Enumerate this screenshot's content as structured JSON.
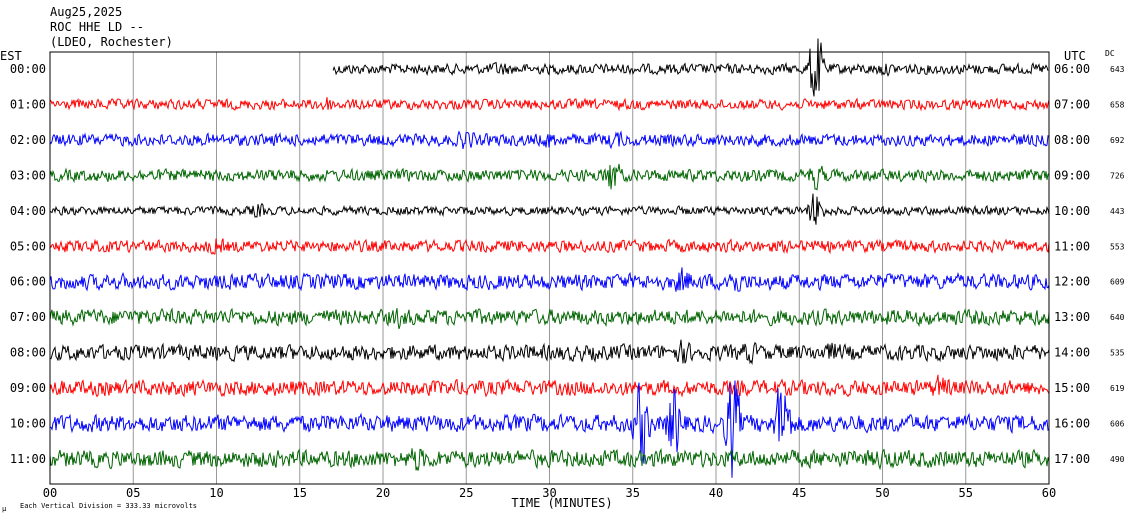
{
  "header": {
    "date": "Aug25,2025",
    "station": "ROC HHE LD --",
    "network": "(LDEO, Rochester)"
  },
  "axes": {
    "left_zone": "EST",
    "right_zone": "UTC",
    "dc_header": "DC",
    "xlabel": "TIME (MINUTES)",
    "footer_note": "Each Vertical Division =  333.33 microvolts",
    "footer_mark": "μ"
  },
  "colors": {
    "cycle": [
      "#000000",
      "#ff0000",
      "#0000ff",
      "#006400"
    ],
    "grid": "#999999",
    "frame": "#000000"
  },
  "chart_data": {
    "type": "line",
    "title": "ROC HHE LD --",
    "xlabel": "TIME (MINUTES)",
    "xlim": [
      0,
      60
    ],
    "x_ticks": [
      "00",
      "05",
      "10",
      "15",
      "20",
      "25",
      "30",
      "35",
      "40",
      "45",
      "50",
      "55",
      "60"
    ],
    "vertical_division_microvolts": 333.33,
    "traces": [
      {
        "est": "00:00",
        "utc": "06:00",
        "dc": "643",
        "color": "#000000",
        "start_minute": 17,
        "amplitude": 6,
        "events": [
          {
            "minute": 27,
            "amp": 10
          },
          {
            "minute": 50,
            "amp": 9
          },
          {
            "minute": 46,
            "amp": 55
          }
        ]
      },
      {
        "est": "01:00",
        "utc": "07:00",
        "dc": "658",
        "color": "#ff0000",
        "start_minute": 0,
        "amplitude": 6,
        "events": [
          {
            "minute": 16.5,
            "amp": 12
          }
        ]
      },
      {
        "est": "02:00",
        "utc": "08:00",
        "dc": "692",
        "color": "#0000ff",
        "start_minute": 0,
        "amplitude": 7,
        "events": [
          {
            "minute": 25,
            "amp": 14
          },
          {
            "minute": 30,
            "amp": 12
          },
          {
            "minute": 34,
            "amp": 12
          }
        ]
      },
      {
        "est": "03:00",
        "utc": "09:00",
        "dc": "726",
        "color": "#006400",
        "start_minute": 0,
        "amplitude": 7,
        "events": [
          {
            "minute": 33.8,
            "amp": 26
          },
          {
            "minute": 46,
            "amp": 18
          }
        ]
      },
      {
        "est": "04:00",
        "utc": "10:00",
        "dc": "443",
        "color": "#000000",
        "start_minute": 0,
        "amplitude": 5,
        "events": [
          {
            "minute": 46,
            "amp": 28
          },
          {
            "minute": 12.5,
            "amp": 10
          }
        ]
      },
      {
        "est": "05:00",
        "utc": "11:00",
        "dc": "553",
        "color": "#ff0000",
        "start_minute": 0,
        "amplitude": 7,
        "events": [
          {
            "minute": 10,
            "amp": 12
          }
        ]
      },
      {
        "est": "06:00",
        "utc": "12:00",
        "dc": "609",
        "color": "#0000ff",
        "start_minute": 0,
        "amplitude": 9,
        "events": [
          {
            "minute": 38,
            "amp": 18
          },
          {
            "minute": 41,
            "amp": 20
          }
        ]
      },
      {
        "est": "07:00",
        "utc": "13:00",
        "dc": "640",
        "color": "#006400",
        "start_minute": 0,
        "amplitude": 9,
        "events": [
          {
            "minute": 21,
            "amp": 14
          }
        ]
      },
      {
        "est": "08:00",
        "utc": "14:00",
        "dc": "535",
        "color": "#000000",
        "start_minute": 0,
        "amplitude": 9,
        "events": [
          {
            "minute": 38,
            "amp": 16
          },
          {
            "minute": 42,
            "amp": 14
          },
          {
            "minute": 47,
            "amp": 14
          }
        ]
      },
      {
        "est": "09:00",
        "utc": "15:00",
        "dc": "619",
        "color": "#ff0000",
        "start_minute": 0,
        "amplitude": 9,
        "events": [
          {
            "minute": 53.5,
            "amp": 18
          }
        ]
      },
      {
        "est": "10:00",
        "utc": "16:00",
        "dc": "606",
        "color": "#0000ff",
        "start_minute": 0,
        "amplitude": 10,
        "events": [
          {
            "minute": 35.5,
            "amp": 60
          },
          {
            "minute": 37.5,
            "amp": 50
          },
          {
            "minute": 41,
            "amp": 70
          },
          {
            "minute": 44,
            "amp": 70
          }
        ]
      },
      {
        "est": "11:00",
        "utc": "17:00",
        "dc": "490",
        "color": "#006400",
        "start_minute": 0,
        "amplitude": 10,
        "events": [
          {
            "minute": 22,
            "amp": 18
          },
          {
            "minute": 50,
            "amp": 14
          }
        ]
      }
    ]
  }
}
